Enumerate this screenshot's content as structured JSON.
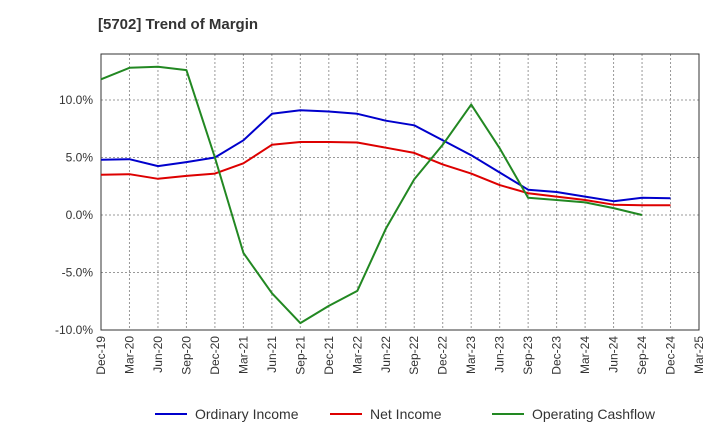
{
  "chart_data": {
    "type": "line",
    "title": "[5702]  Trend of Margin",
    "xlabel": "",
    "ylabel": "",
    "x": [
      "Dec-19",
      "Mar-20",
      "Jun-20",
      "Sep-20",
      "Dec-20",
      "Mar-21",
      "Jun-21",
      "Sep-21",
      "Dec-21",
      "Mar-22",
      "Jun-22",
      "Sep-22",
      "Dec-22",
      "Mar-23",
      "Jun-23",
      "Sep-23",
      "Dec-23",
      "Mar-24",
      "Jun-24",
      "Sep-24",
      "Dec-24",
      "Mar-25"
    ],
    "ylim": [
      -10,
      14
    ],
    "yticks": [
      -10,
      -5,
      0,
      5,
      10
    ],
    "ytick_labels": [
      "-10.0%",
      "-5.0%",
      "0.0%",
      "5.0%",
      "10.0%"
    ],
    "grid": true,
    "legend_position": "bottom",
    "series": [
      {
        "name": "Ordinary Income",
        "color": "#0000cc",
        "values": [
          4.8,
          4.85,
          4.25,
          4.6,
          5.0,
          6.5,
          8.8,
          9.1,
          9.0,
          8.8,
          8.2,
          7.8,
          6.5,
          5.2,
          3.7,
          2.2,
          2.0,
          1.6,
          1.2,
          1.5,
          1.45,
          null
        ]
      },
      {
        "name": "Net Income",
        "color": "#dd0000",
        "values": [
          3.5,
          3.55,
          3.15,
          3.4,
          3.6,
          4.5,
          6.1,
          6.35,
          6.35,
          6.3,
          5.85,
          5.4,
          4.4,
          3.6,
          2.6,
          1.9,
          1.6,
          1.3,
          0.9,
          0.85,
          0.85,
          null
        ]
      },
      {
        "name": "Operating Cashflow",
        "color": "#228822",
        "values": [
          11.8,
          12.8,
          12.9,
          12.6,
          5.0,
          -3.3,
          -6.8,
          -9.4,
          -7.9,
          -6.6,
          -1.2,
          3.1,
          6.1,
          9.6,
          5.8,
          1.5,
          1.3,
          1.1,
          0.6,
          0.0,
          null,
          null
        ]
      }
    ]
  }
}
